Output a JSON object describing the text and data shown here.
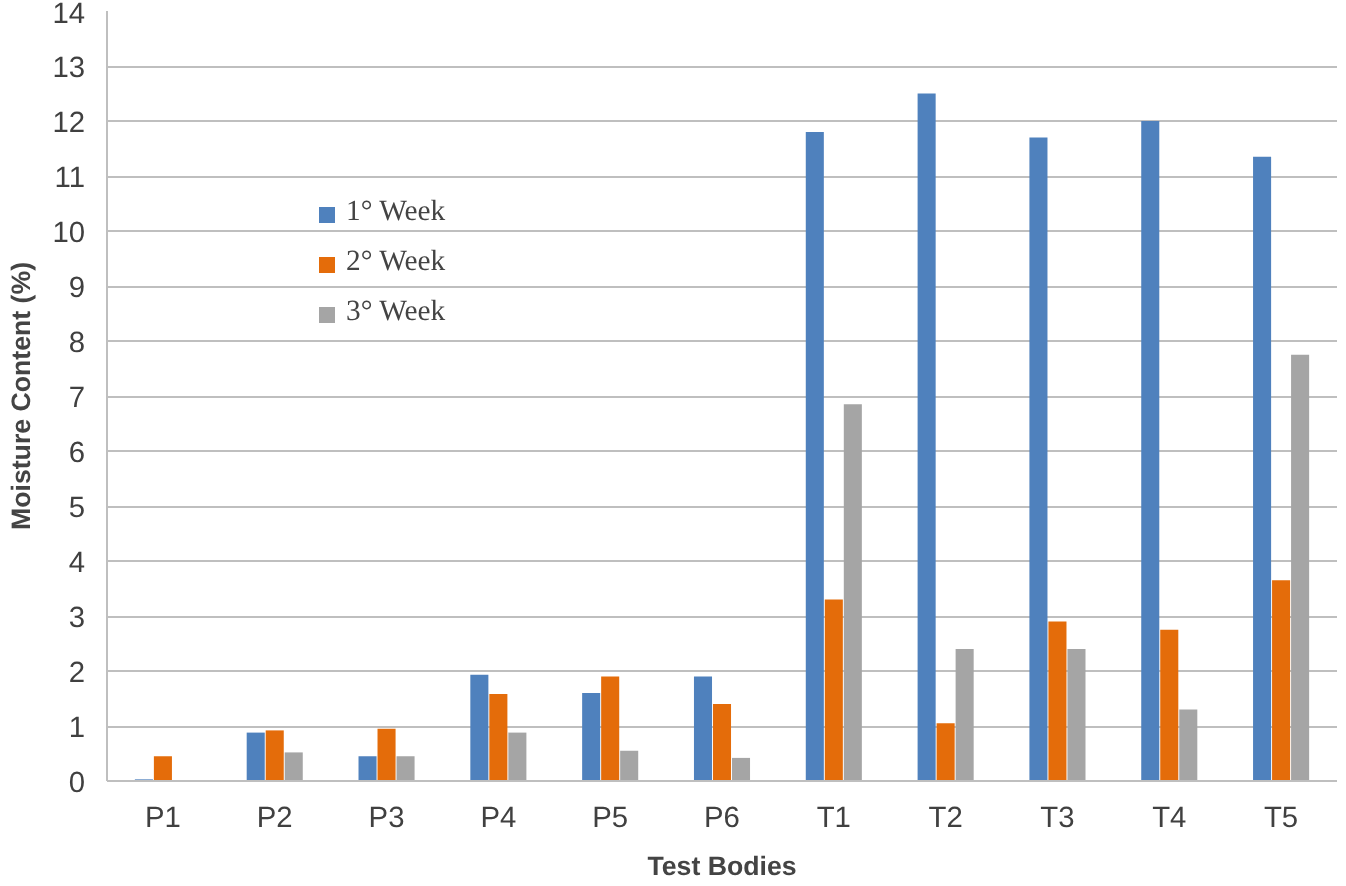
{
  "chart_data": {
    "type": "bar",
    "xlabel": "Test Bodies",
    "ylabel": "Moisture Content (%)",
    "categories": [
      "P1",
      "P2",
      "P3",
      "P4",
      "P5",
      "P6",
      "T1",
      "T2",
      "T3",
      "T4",
      "T5"
    ],
    "series": [
      {
        "name": "1° Week",
        "color": "#4f81bd",
        "values": [
          0.03,
          0.88,
          0.45,
          1.93,
          1.6,
          1.9,
          11.8,
          12.5,
          11.7,
          12.0,
          11.35
        ]
      },
      {
        "name": "2° Week",
        "color": "#e46c0a",
        "values": [
          0.45,
          0.92,
          0.95,
          1.58,
          1.9,
          1.4,
          3.3,
          1.05,
          2.9,
          2.75,
          3.65
        ]
      },
      {
        "name": "3° Week",
        "color": "#a5a5a5",
        "values": [
          0,
          0.52,
          0.45,
          0.88,
          0.55,
          0.42,
          6.85,
          2.4,
          2.4,
          1.3,
          7.75
        ]
      }
    ],
    "ylim": [
      0,
      14
    ],
    "yticks": [
      0,
      1,
      2,
      3,
      4,
      5,
      6,
      7,
      8,
      9,
      10,
      11,
      12,
      13,
      14
    ],
    "grid": "y",
    "legend": "top left"
  }
}
